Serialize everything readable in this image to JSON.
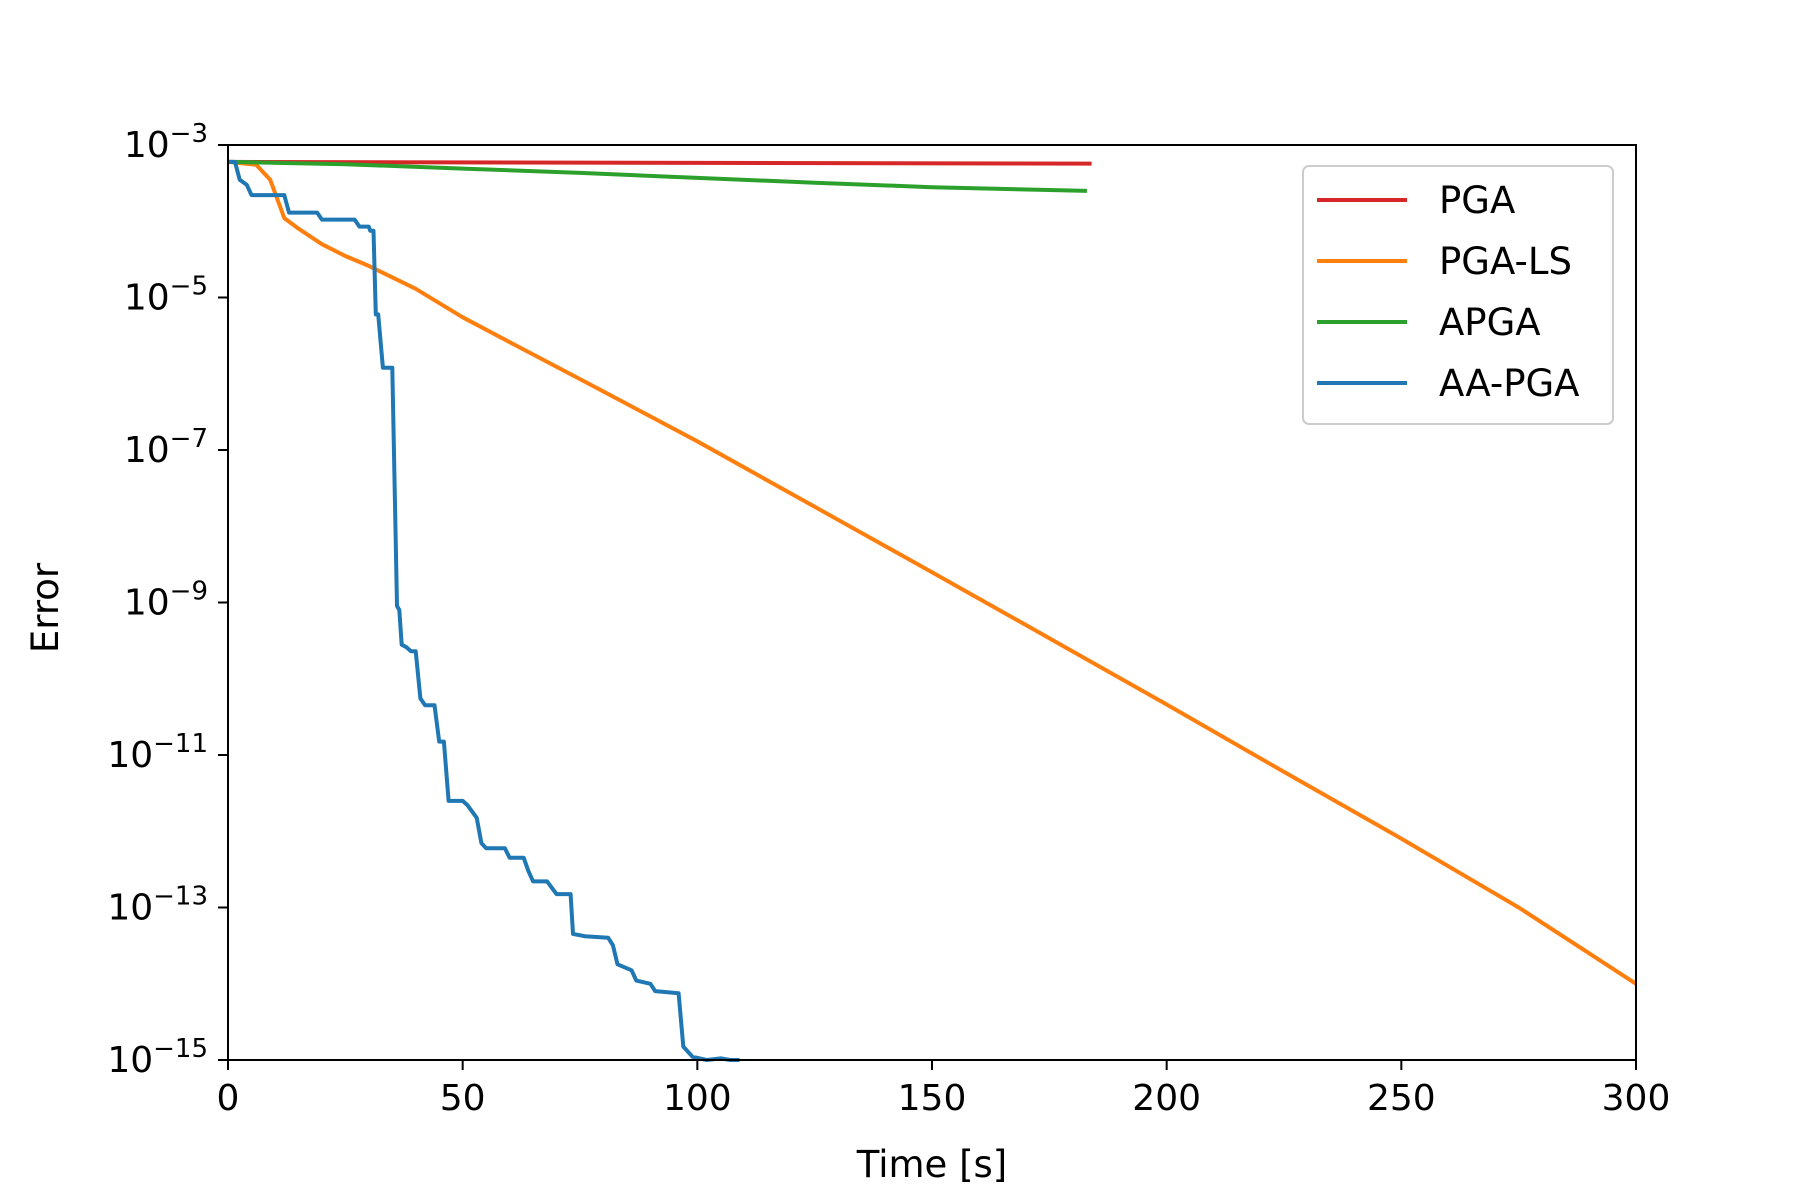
{
  "chart_data": {
    "type": "line",
    "xlabel": "Time [s]",
    "ylabel": "Error",
    "xlim": [
      0,
      300
    ],
    "ylim": [
      1e-15,
      0.001
    ],
    "yscale": "log",
    "x_ticks": [
      0,
      50,
      100,
      150,
      200,
      250,
      300
    ],
    "y_ticks": [
      {
        "value": 0.001,
        "base": "10",
        "exp": "−3"
      },
      {
        "value": 1e-05,
        "base": "10",
        "exp": "−5"
      },
      {
        "value": 1e-07,
        "base": "10",
        "exp": "−7"
      },
      {
        "value": 1e-09,
        "base": "10",
        "exp": "−9"
      },
      {
        "value": 1e-11,
        "base": "10",
        "exp": "−11"
      },
      {
        "value": 1e-13,
        "base": "10",
        "exp": "−13"
      },
      {
        "value": 1e-15,
        "base": "10",
        "exp": "−15"
      }
    ],
    "grid": false,
    "legend_position": "top-right",
    "series": [
      {
        "name": "PGA",
        "color": "#d62728",
        "points": [
          [
            0,
            0.0006
          ],
          [
            184,
            0.00057
          ]
        ]
      },
      {
        "name": "PGA-LS",
        "color": "#ff7f0e",
        "points": [
          [
            0,
            0.0006
          ],
          [
            6,
            0.00055
          ],
          [
            9,
            0.00035
          ],
          [
            12,
            0.00011
          ],
          [
            15,
            8e-05
          ],
          [
            20,
            5e-05
          ],
          [
            25,
            3.5e-05
          ],
          [
            30,
            2.6e-05
          ],
          [
            40,
            1.3e-05
          ],
          [
            50,
            5.5e-06
          ],
          [
            60,
            2.6e-06
          ],
          [
            75,
            8.5e-07
          ],
          [
            100,
            1.3e-07
          ],
          [
            125,
            1.8e-08
          ],
          [
            150,
            2.5e-09
          ],
          [
            175,
            3.4e-10
          ],
          [
            200,
            4.6e-11
          ],
          [
            225,
            6e-12
          ],
          [
            250,
            8e-13
          ],
          [
            275,
            1e-13
          ],
          [
            300,
            1e-14
          ]
        ]
      },
      {
        "name": "APGA",
        "color": "#2ca02c",
        "points": [
          [
            0,
            0.0006
          ],
          [
            25,
            0.00056
          ],
          [
            50,
            0.00049
          ],
          [
            75,
            0.00043
          ],
          [
            100,
            0.00037
          ],
          [
            125,
            0.00032
          ],
          [
            150,
            0.00028
          ],
          [
            183,
            0.00025
          ]
        ]
      },
      {
        "name": "AA-PGA",
        "color": "#1f77b4",
        "points": [
          [
            0,
            0.0006
          ],
          [
            1.5,
            0.0006
          ],
          [
            2.5,
            0.00035
          ],
          [
            4,
            0.0003
          ],
          [
            5,
            0.00022
          ],
          [
            12,
            0.00022
          ],
          [
            13,
            0.00013
          ],
          [
            19,
            0.00013
          ],
          [
            20,
            0.000105
          ],
          [
            27,
            0.000105
          ],
          [
            28,
            8.5e-05
          ],
          [
            30,
            8.5e-05
          ],
          [
            30.3,
            7.5e-05
          ],
          [
            31,
            7.5e-05
          ],
          [
            31.5,
            6e-06
          ],
          [
            32,
            6e-06
          ],
          [
            33,
            1.2e-06
          ],
          [
            35,
            1.2e-06
          ],
          [
            36,
            9e-10
          ],
          [
            36.5,
            8e-10
          ],
          [
            37,
            2.8e-10
          ],
          [
            38,
            2.6e-10
          ],
          [
            39,
            2.3e-10
          ],
          [
            40,
            2.3e-10
          ],
          [
            41,
            5.5e-11
          ],
          [
            42,
            4.5e-11
          ],
          [
            44,
            4.5e-11
          ],
          [
            45,
            1.5e-11
          ],
          [
            46,
            1.5e-11
          ],
          [
            47,
            2.5e-12
          ],
          [
            50,
            2.5e-12
          ],
          [
            51,
            2.2e-12
          ],
          [
            53,
            1.5e-12
          ],
          [
            54,
            7e-13
          ],
          [
            55,
            6e-13
          ],
          [
            59,
            6e-13
          ],
          [
            60,
            4.5e-13
          ],
          [
            63,
            4.5e-13
          ],
          [
            64,
            3e-13
          ],
          [
            65,
            2.2e-13
          ],
          [
            68,
            2.2e-13
          ],
          [
            70,
            1.5e-13
          ],
          [
            73,
            1.5e-13
          ],
          [
            73.5,
            4.5e-14
          ],
          [
            76,
            4.2e-14
          ],
          [
            81,
            4e-14
          ],
          [
            82,
            3.2e-14
          ],
          [
            83,
            1.8e-14
          ],
          [
            86,
            1.5e-14
          ],
          [
            87,
            1.1e-14
          ],
          [
            90,
            1e-14
          ],
          [
            91,
            8e-15
          ],
          [
            96,
            7.5e-15
          ],
          [
            97,
            1.5e-15
          ],
          [
            99,
            1.1e-15
          ],
          [
            102,
            1e-15
          ],
          [
            105,
            1.05e-15
          ],
          [
            107,
            1e-15
          ],
          [
            109,
            1e-15
          ]
        ]
      }
    ]
  }
}
